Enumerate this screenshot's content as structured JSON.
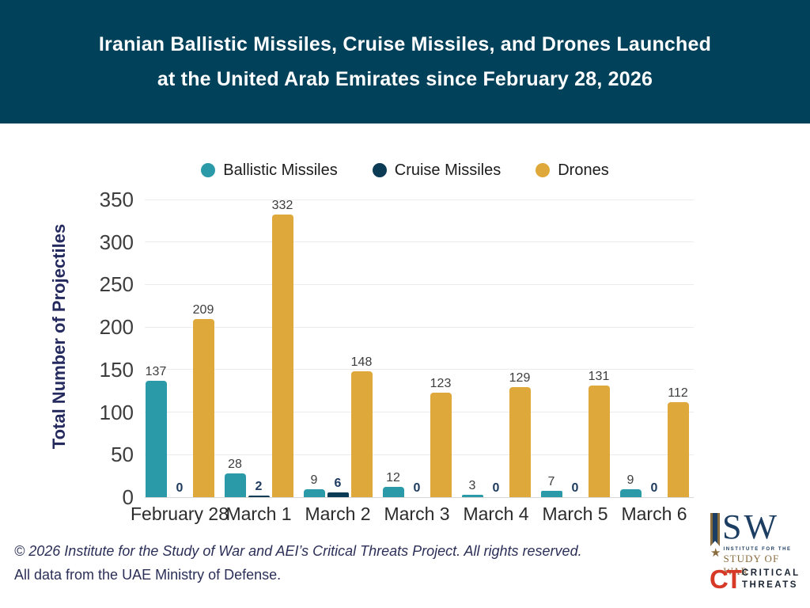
{
  "header": {
    "title_line1": "Iranian Ballistic Missiles, Cruise Missiles, and Drones Launched",
    "title_line2": "at the United Arab Emirates since February 28, 2026"
  },
  "chart_data": {
    "type": "bar",
    "title": "Iranian Ballistic Missiles, Cruise Missiles, and Drones Launched at the United Arab Emirates since February 28, 2026",
    "xlabel": "",
    "ylabel": "Total Number of Projectiles",
    "ylim": [
      0,
      350
    ],
    "yticks": [
      0,
      50,
      100,
      150,
      200,
      250,
      300,
      350
    ],
    "grid": true,
    "legend_position": "top",
    "categories": [
      "February 28",
      "March 1",
      "March 2",
      "March 3",
      "March 4",
      "March 5",
      "March 6"
    ],
    "series": [
      {
        "name": "Ballistic Missiles",
        "color": "#2A9AA8",
        "label_color": "default",
        "values": [
          137,
          28,
          9,
          12,
          3,
          7,
          9
        ]
      },
      {
        "name": "Cruise Missiles",
        "color": "#0C3B55",
        "label_color": "navy",
        "values": [
          0,
          2,
          6,
          0,
          0,
          0,
          0
        ]
      },
      {
        "name": "Drones",
        "color": "#DFA83A",
        "label_color": "default",
        "values": [
          209,
          332,
          148,
          123,
          129,
          131,
          112
        ]
      }
    ]
  },
  "footer": {
    "line1": "© 2026 Institute for the Study of War and AEI’s Critical Threats Project. All rights reserved.",
    "line2": "All data from the UAE Ministry of Defense."
  },
  "logos": {
    "isw": {
      "letters": "SW",
      "line1": "INSTITUTE FOR THE",
      "line2": "STUDY OF WAR",
      "star_icon": "★"
    },
    "ct": {
      "mark": "CT",
      "line1": "CRITICAL",
      "line2": "THREATS"
    }
  },
  "colors": {
    "header_bg": "#02415A",
    "grid": "#ececec",
    "baseline": "#d8d8d8",
    "tick_text": "#3d3d3d",
    "navy_text": "#252a5e",
    "isw_navy": "#1d3e63",
    "isw_bronze": "#8a6d3f",
    "ct_red": "#d63a27"
  }
}
